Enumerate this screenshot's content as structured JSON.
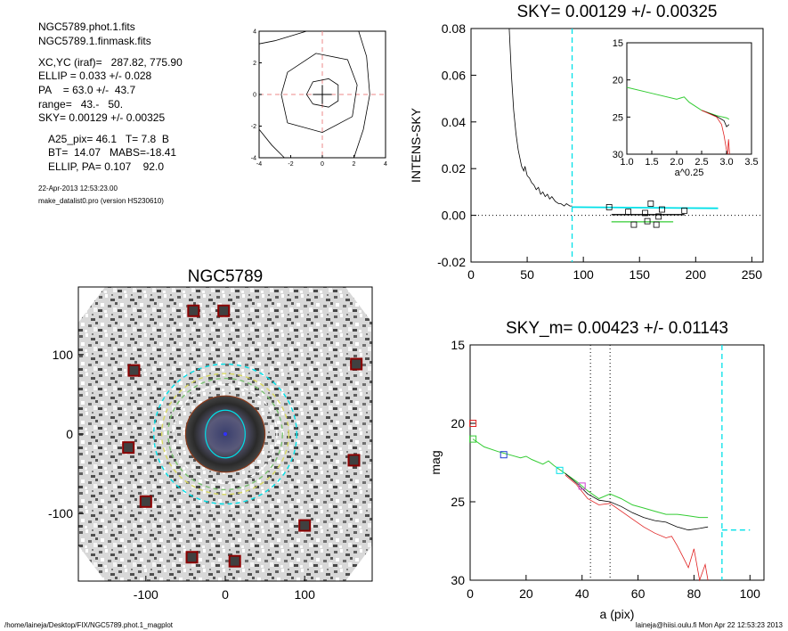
{
  "header": {
    "file1": "NGC5789.phot.1.fits",
    "file2": "NGC5789.1.finmask.fits",
    "xcyc": "XC,YC (iraf)=   287.82, 775.90",
    "ellip": "ELLIP = 0.033 +/- 0.028",
    "pa": "PA    = 63.0 +/-  43.7",
    "range": "range=   43.-   50.",
    "sky": "SKY= 0.00129 +/- 0.00325",
    "a25": "A25_pix= 46.1   T= 7.8  B",
    "bt": "BT=  14.07   MABS=-18.41",
    "ellip_pa": "ELLIP, PA= 0.107    92.0",
    "date": "22-Apr-2013 12:53:23.00",
    "program": "make_datalist0.pro (version HS230610)"
  },
  "footer": {
    "path": "/home/laineja/Desktop/FIX/NGC5789.phot.1_magplot",
    "user": "laineja@hiisi.oulu.fi  Mon Apr 22 12:53:23 2013"
  },
  "colors": {
    "cyan": "#00e0e8",
    "green": "#33cc33",
    "red": "#e02020",
    "darkred": "#8b0000",
    "gray": "#909090"
  },
  "chart_data": [
    {
      "type": "line",
      "id": "contour-inset",
      "title": "",
      "xlim": [
        -4,
        4
      ],
      "ylim": [
        -4,
        4
      ],
      "xticks": [
        -4,
        -2,
        0,
        2,
        4
      ],
      "yticks": [
        -4,
        -2,
        0,
        2,
        4
      ],
      "contours": [
        [
          [
            -0.6,
            -0.6
          ],
          [
            0.4,
            -0.8
          ],
          [
            1,
            -0.4
          ],
          [
            1,
            0.6
          ],
          [
            0.4,
            1
          ],
          [
            -0.6,
            0.8
          ],
          [
            -1,
            0
          ],
          [
            -0.6,
            -0.6
          ]
        ],
        [
          [
            -2.2,
            -1.8
          ],
          [
            0,
            -2.4
          ],
          [
            1.9,
            -1.4
          ],
          [
            2.2,
            0.6
          ],
          [
            1.6,
            2.2
          ],
          [
            -0.4,
            2.6
          ],
          [
            -2.2,
            1.4
          ],
          [
            -2.6,
            0
          ],
          [
            -2.2,
            -1.8
          ]
        ],
        [
          [
            -4,
            3.2
          ],
          [
            -3,
            3.4
          ],
          [
            -1,
            4
          ]
        ],
        [
          [
            2.3,
            4
          ],
          [
            2.8,
            2.4
          ],
          [
            3,
            0
          ],
          [
            2.6,
            -2.2
          ],
          [
            2,
            -4
          ]
        ],
        [
          [
            -4,
            -2.2
          ],
          [
            -3.2,
            -3.2
          ],
          [
            -2.4,
            -4
          ]
        ]
      ]
    },
    {
      "type": "line",
      "id": "sky-profile",
      "title": "SKY= 0.00129 +/- 0.00325",
      "xlabel": "",
      "ylabel": "INTENS-SKY",
      "xlim": [
        0,
        260
      ],
      "ylim": [
        -0.02,
        0.08
      ],
      "xticks": [
        0,
        50,
        100,
        150,
        200,
        250
      ],
      "yticks": [
        -0.02,
        0.0,
        0.02,
        0.04,
        0.06,
        0.08
      ],
      "ytick_labels": [
        "-0.02",
        "0.00",
        "0.02",
        "0.04",
        "0.06",
        "0.08"
      ],
      "vline_x": 90,
      "profile": [
        [
          34,
          0.08
        ],
        [
          36,
          0.06
        ],
        [
          38,
          0.045
        ],
        [
          40,
          0.035
        ],
        [
          42,
          0.028
        ],
        [
          45,
          0.021
        ],
        [
          47,
          0.019
        ],
        [
          48,
          0.021
        ],
        [
          50,
          0.017
        ],
        [
          52,
          0.016
        ],
        [
          54,
          0.014
        ],
        [
          56,
          0.013
        ],
        [
          58,
          0.011
        ],
        [
          60,
          0.012
        ],
        [
          62,
          0.009
        ],
        [
          64,
          0.01
        ],
        [
          66,
          0.008
        ],
        [
          68,
          0.009
        ],
        [
          70,
          0.007
        ],
        [
          72,
          0.008
        ],
        [
          75,
          0.006
        ],
        [
          78,
          0.005
        ],
        [
          80,
          0.005
        ],
        [
          83,
          0.004
        ],
        [
          85,
          0.005
        ],
        [
          88,
          0.004
        ],
        [
          90,
          0.004
        ]
      ],
      "cyan_line": [
        [
          90,
          0.0035
        ],
        [
          220,
          0.003
        ]
      ],
      "green_line": [
        [
          125,
          -0.0028
        ],
        [
          180,
          -0.0028
        ]
      ],
      "black_line": [
        [
          125,
          0.0003
        ],
        [
          190,
          0.0003
        ]
      ],
      "boxes": [
        [
          123,
          0.0035
        ],
        [
          140,
          0.0015
        ],
        [
          145,
          -0.004
        ],
        [
          155,
          0.001
        ],
        [
          157,
          -0.0025
        ],
        [
          160,
          0.005
        ],
        [
          165,
          -0.004
        ],
        [
          167,
          -0.0005
        ],
        [
          170,
          0.0025
        ],
        [
          190,
          0.002
        ]
      ],
      "inset": {
        "xlabel": "a^0.25",
        "xlim": [
          1.0,
          3.5
        ],
        "ylim": [
          30,
          15
        ],
        "xticks": [
          1.0,
          1.5,
          2.0,
          2.5,
          3.0,
          3.5
        ],
        "xtick_labels": [
          "1.0",
          "1.5",
          "2.0",
          "2.5",
          "3.0",
          "3.5"
        ],
        "yticks": [
          15,
          20,
          25,
          30
        ],
        "green": [
          [
            1,
            21
          ],
          [
            1.5,
            21.8
          ],
          [
            2,
            22.6
          ],
          [
            2.15,
            22.3
          ],
          [
            2.25,
            23
          ],
          [
            2.5,
            24.1
          ],
          [
            2.8,
            24.8
          ],
          [
            3.0,
            25.1
          ],
          [
            3.05,
            25.3
          ]
        ],
        "black": [
          [
            2.5,
            24.1
          ],
          [
            2.8,
            24.9
          ],
          [
            2.95,
            25.5
          ],
          [
            3.0,
            26.3
          ],
          [
            3.05,
            26.0
          ]
        ],
        "red": [
          [
            2.5,
            24.1
          ],
          [
            2.8,
            25.0
          ],
          [
            2.9,
            26.0
          ],
          [
            2.95,
            27.5
          ],
          [
            3.0,
            29.5
          ],
          [
            3.02,
            30
          ],
          [
            3.04,
            28
          ],
          [
            3.06,
            30
          ]
        ]
      }
    },
    {
      "type": "heatmap",
      "id": "galaxy-image",
      "title": "NGC5789",
      "xlim": [
        -185,
        185
      ],
      "ylim": [
        -185,
        185
      ],
      "xticks": [
        -100,
        0,
        100
      ],
      "yticks": [
        -100,
        0,
        100
      ],
      "masked_stars": [
        [
          -40,
          155
        ],
        [
          -2,
          155
        ],
        [
          -115,
          80
        ],
        [
          165,
          88
        ],
        [
          -122,
          -17
        ],
        [
          162,
          -33
        ],
        [
          -100,
          -85
        ],
        [
          100,
          -115
        ],
        [
          -42,
          -155
        ],
        [
          12,
          -160
        ]
      ],
      "rings": [
        {
          "color": "cyan",
          "rx": 90,
          "ry": 88,
          "dashed": true
        },
        {
          "color": "yellow",
          "rx": 80,
          "ry": 76,
          "dashed": true
        },
        {
          "color": "green",
          "rx": 72,
          "ry": 70,
          "dashed": true
        },
        {
          "color": "white",
          "rx": 65,
          "ry": 62,
          "dashed": true
        },
        {
          "color": "brown",
          "rx": 50,
          "ry": 48,
          "dashed": false
        },
        {
          "color": "cyan",
          "rx": 25,
          "ry": 30,
          "dashed": false
        }
      ]
    },
    {
      "type": "line",
      "id": "mag-profile",
      "title": "SKY_m=  0.00423 +/- 0.01143",
      "xlabel": "a (pix)",
      "ylabel": "mag",
      "xlim": [
        0,
        105
      ],
      "ylim": [
        30,
        15
      ],
      "xticks": [
        0,
        20,
        40,
        60,
        80,
        100
      ],
      "yticks": [
        15,
        20,
        25,
        30
      ],
      "dotted_vlines": [
        43,
        50
      ],
      "cyan_dashed_vline": 90,
      "cyan_dashed_hline": {
        "y": 26.8,
        "x0": 90,
        "x1": 100
      },
      "boxes": [
        {
          "x": 1,
          "y": 20.0,
          "color": "red"
        },
        {
          "x": 1,
          "y": 21.0,
          "color": "green"
        },
        {
          "x": 12,
          "y": 22.0,
          "color": "blue"
        },
        {
          "x": 32,
          "y": 23.0,
          "color": "cyan"
        },
        {
          "x": 40,
          "y": 24.0,
          "color": "magenta"
        }
      ],
      "green": [
        [
          1,
          21
        ],
        [
          5,
          21.5
        ],
        [
          10,
          21.8
        ],
        [
          14,
          22.0
        ],
        [
          18,
          22.2
        ],
        [
          20,
          22.1
        ],
        [
          22,
          22.3
        ],
        [
          26,
          22.6
        ],
        [
          28,
          22.4
        ],
        [
          30,
          22.7
        ],
        [
          34,
          23.2
        ],
        [
          38,
          23.7
        ],
        [
          42,
          24.3
        ],
        [
          46,
          24.8
        ],
        [
          50,
          24.5
        ],
        [
          54,
          24.8
        ],
        [
          58,
          25.2
        ],
        [
          62,
          25.4
        ],
        [
          66,
          25.6
        ],
        [
          70,
          25.8
        ],
        [
          74,
          25.8
        ],
        [
          78,
          25.9
        ],
        [
          82,
          26.0
        ],
        [
          85,
          26.0
        ]
      ],
      "black": [
        [
          34,
          23.2
        ],
        [
          38,
          23.8
        ],
        [
          42,
          24.5
        ],
        [
          46,
          24.9
        ],
        [
          50,
          25.0
        ],
        [
          54,
          25.3
        ],
        [
          58,
          25.7
        ],
        [
          62,
          26.0
        ],
        [
          66,
          26.2
        ],
        [
          70,
          26.3
        ],
        [
          74,
          26.6
        ],
        [
          78,
          26.8
        ],
        [
          82,
          26.7
        ],
        [
          85,
          26.6
        ]
      ],
      "red": [
        [
          34,
          23.3
        ],
        [
          38,
          23.9
        ],
        [
          42,
          24.8
        ],
        [
          46,
          25.2
        ],
        [
          50,
          25.1
        ],
        [
          54,
          25.6
        ],
        [
          58,
          26.1
        ],
        [
          62,
          26.6
        ],
        [
          66,
          27.0
        ],
        [
          70,
          27.3
        ],
        [
          72,
          27.2
        ],
        [
          74,
          27.8
        ],
        [
          76,
          28.5
        ],
        [
          78,
          29.2
        ],
        [
          80,
          28.0
        ],
        [
          82,
          30
        ],
        [
          84,
          29.0
        ],
        [
          85,
          30
        ]
      ]
    }
  ]
}
